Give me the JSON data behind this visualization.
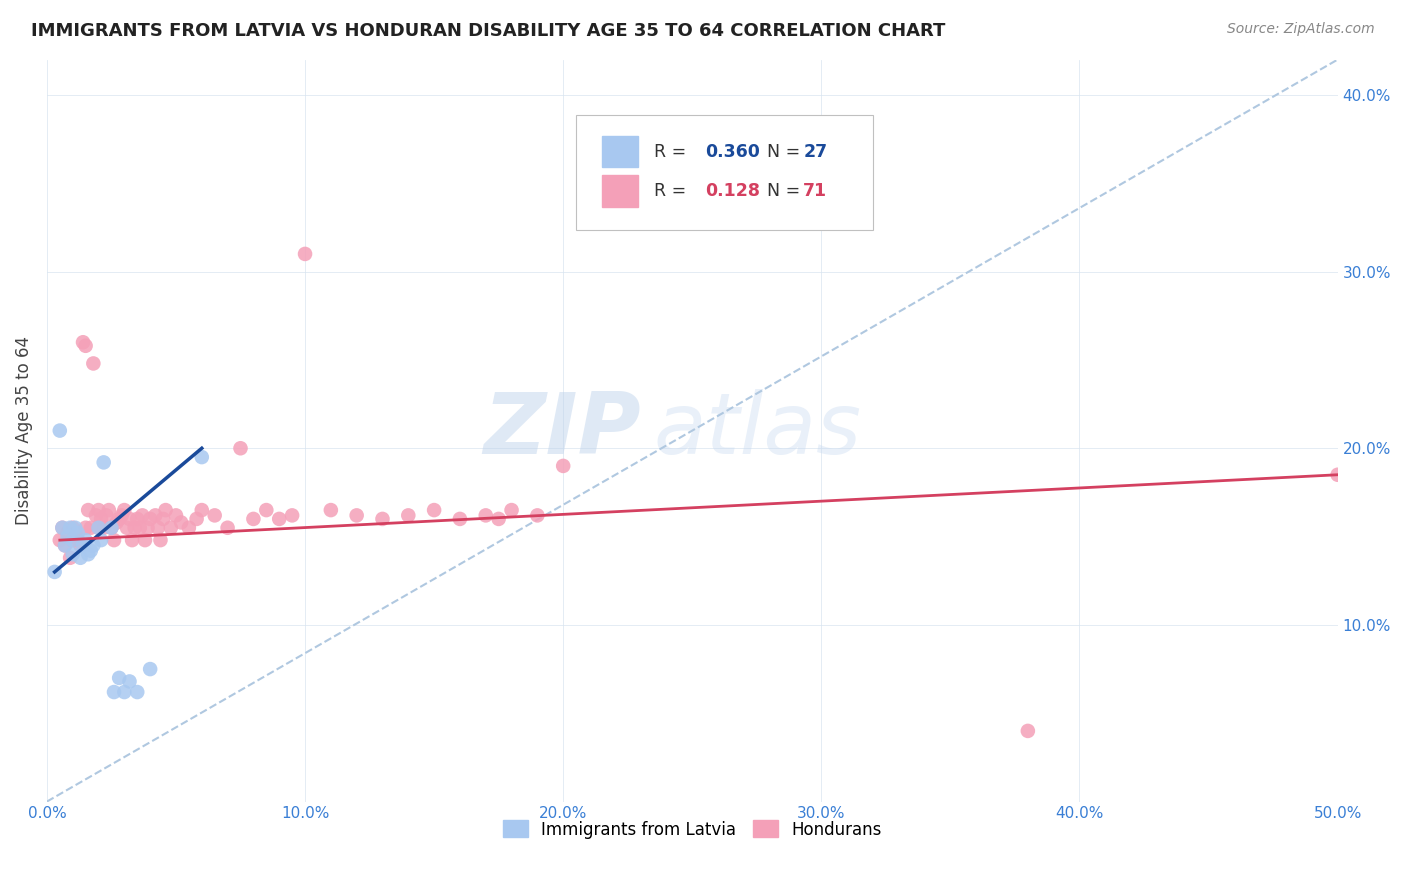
{
  "title": "IMMIGRANTS FROM LATVIA VS HONDURAN DISABILITY AGE 35 TO 64 CORRELATION CHART",
  "source": "Source: ZipAtlas.com",
  "ylabel": "Disability Age 35 to 64",
  "xlim": [
    0.0,
    0.5
  ],
  "ylim": [
    0.0,
    0.42
  ],
  "xticks": [
    0.0,
    0.1,
    0.2,
    0.3,
    0.4,
    0.5
  ],
  "xtick_labels": [
    "0.0%",
    "10.0%",
    "20.0%",
    "30.0%",
    "40.0%",
    "50.0%"
  ],
  "yticks": [
    0.1,
    0.2,
    0.3,
    0.4
  ],
  "ytick_labels": [
    "10.0%",
    "20.0%",
    "30.0%",
    "40.0%"
  ],
  "blue_color": "#a8c8f0",
  "pink_color": "#f4a0b8",
  "blue_line_color": "#1a4a9a",
  "pink_line_color": "#d44060",
  "dashed_line_color": "#b0c8e0",
  "watermark_zip": "ZIP",
  "watermark_atlas": "atlas",
  "latvia_x": [
    0.003,
    0.005,
    0.006,
    0.007,
    0.008,
    0.009,
    0.01,
    0.01,
    0.011,
    0.012,
    0.013,
    0.014,
    0.015,
    0.016,
    0.017,
    0.018,
    0.02,
    0.021,
    0.022,
    0.025,
    0.026,
    0.028,
    0.03,
    0.032,
    0.035,
    0.04,
    0.06
  ],
  "latvia_y": [
    0.13,
    0.21,
    0.155,
    0.145,
    0.15,
    0.155,
    0.148,
    0.14,
    0.155,
    0.152,
    0.138,
    0.145,
    0.148,
    0.14,
    0.142,
    0.145,
    0.155,
    0.148,
    0.192,
    0.155,
    0.062,
    0.07,
    0.062,
    0.068,
    0.062,
    0.075,
    0.195
  ],
  "honduran_x": [
    0.005,
    0.006,
    0.007,
    0.008,
    0.009,
    0.01,
    0.01,
    0.011,
    0.012,
    0.013,
    0.014,
    0.015,
    0.015,
    0.016,
    0.017,
    0.018,
    0.019,
    0.02,
    0.02,
    0.021,
    0.022,
    0.023,
    0.024,
    0.025,
    0.026,
    0.027,
    0.028,
    0.029,
    0.03,
    0.031,
    0.032,
    0.033,
    0.034,
    0.035,
    0.036,
    0.037,
    0.038,
    0.039,
    0.04,
    0.042,
    0.043,
    0.044,
    0.045,
    0.046,
    0.048,
    0.05,
    0.052,
    0.055,
    0.058,
    0.06,
    0.065,
    0.07,
    0.075,
    0.08,
    0.085,
    0.09,
    0.095,
    0.1,
    0.11,
    0.12,
    0.13,
    0.14,
    0.15,
    0.16,
    0.17,
    0.175,
    0.18,
    0.19,
    0.2,
    0.38,
    0.5
  ],
  "honduran_y": [
    0.148,
    0.155,
    0.145,
    0.152,
    0.138,
    0.148,
    0.155,
    0.152,
    0.148,
    0.145,
    0.26,
    0.155,
    0.258,
    0.165,
    0.155,
    0.248,
    0.162,
    0.165,
    0.155,
    0.16,
    0.155,
    0.162,
    0.165,
    0.155,
    0.148,
    0.158,
    0.16,
    0.162,
    0.165,
    0.155,
    0.16,
    0.148,
    0.155,
    0.16,
    0.155,
    0.162,
    0.148,
    0.155,
    0.16,
    0.162,
    0.155,
    0.148,
    0.16,
    0.165,
    0.155,
    0.162,
    0.158,
    0.155,
    0.16,
    0.165,
    0.162,
    0.155,
    0.2,
    0.16,
    0.165,
    0.16,
    0.162,
    0.31,
    0.165,
    0.162,
    0.16,
    0.162,
    0.165,
    0.16,
    0.162,
    0.16,
    0.165,
    0.162,
    0.19,
    0.04,
    0.185
  ],
  "latvia_line_x": [
    0.003,
    0.06
  ],
  "latvia_line_y": [
    0.13,
    0.2
  ],
  "honduran_line_x": [
    0.005,
    0.5
  ],
  "honduran_line_y": [
    0.148,
    0.185
  ],
  "dash_line_x": [
    0.0,
    0.5
  ],
  "dash_line_y": [
    0.0,
    0.42
  ]
}
